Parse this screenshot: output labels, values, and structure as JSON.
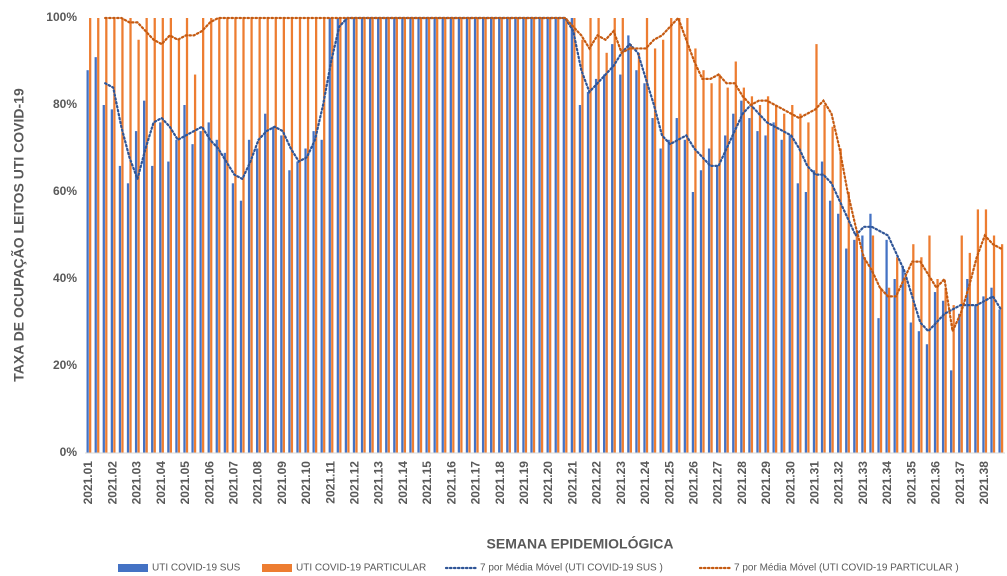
{
  "chart_data": {
    "type": "bar",
    "ylabel": "TAXA DE OCUPAÇÃO LEITOS UTI COVID-19",
    "xlabel": "SEMANA EPIDEMIOLÓGICA",
    "categories": [
      "2021.01",
      null,
      null,
      "2021.02",
      null,
      null,
      "2021.03",
      null,
      null,
      "2021.04",
      null,
      null,
      "2021.05",
      null,
      null,
      "2021.06",
      null,
      null,
      "2021.07",
      null,
      null,
      "2021.08",
      null,
      null,
      "2021.09",
      null,
      null,
      "2021.10",
      null,
      null,
      "2021.11",
      null,
      null,
      "2021.12",
      null,
      null,
      "2021.13",
      null,
      null,
      "2021.14",
      null,
      null,
      "2021.15",
      null,
      null,
      "2021.16",
      null,
      null,
      "2021.17",
      null,
      null,
      "2021.18",
      null,
      null,
      "2021.19",
      null,
      null,
      "2021.20",
      null,
      null,
      "2021.21",
      null,
      null,
      "2021.22",
      null,
      null,
      "2021.23",
      null,
      null,
      "2021.24",
      null,
      null,
      "2021.25",
      null,
      null,
      "2021.26",
      null,
      null,
      "2021.27",
      null,
      null,
      "2021.28",
      null,
      null,
      "2021.29",
      null,
      null,
      "2021.30",
      null,
      null,
      "2021.31",
      null,
      null,
      "2021.32",
      null,
      null,
      "2021.33",
      null,
      null,
      "2021.34",
      null,
      null,
      "2021.35",
      null,
      null,
      "2021.36",
      null,
      null,
      "2021.37",
      null,
      null,
      "2021.38",
      null,
      null
    ],
    "series": [
      {
        "name": "UTI COVID-19 SUS",
        "color": "#4472c4",
        "values": [
          88,
          91,
          80,
          79,
          66,
          62,
          74,
          81,
          66,
          76,
          67,
          72,
          80,
          71,
          74,
          76,
          72,
          69,
          62,
          58,
          72,
          70,
          78,
          75,
          73,
          65,
          67,
          70,
          74,
          72,
          100,
          100,
          100,
          100,
          100,
          100,
          100,
          100,
          100,
          100,
          100,
          100,
          100,
          100,
          100,
          100,
          100,
          100,
          100,
          100,
          100,
          100,
          100,
          100,
          100,
          100,
          100,
          100,
          100,
          100,
          100,
          80,
          83,
          86,
          87,
          94,
          87,
          96,
          88,
          85,
          77,
          70,
          72,
          77,
          72,
          60,
          65,
          70,
          66,
          73,
          78,
          81,
          77,
          74,
          73,
          76,
          72,
          73,
          62,
          60,
          65,
          67,
          58,
          55,
          47,
          49,
          50,
          55,
          31,
          49,
          40,
          43,
          30,
          28,
          25,
          37,
          35,
          19,
          32,
          40,
          34,
          36,
          38,
          33
        ]
      },
      {
        "name": "UTI COVID-19 PARTICULAR",
        "color": "#ed7d31",
        "values": [
          100,
          100,
          100,
          100,
          100,
          100,
          95,
          100,
          100,
          100,
          100,
          95,
          100,
          87,
          100,
          100,
          100,
          100,
          100,
          100,
          100,
          100,
          100,
          100,
          100,
          100,
          100,
          100,
          100,
          100,
          100,
          100,
          100,
          100,
          100,
          100,
          100,
          100,
          100,
          100,
          100,
          100,
          100,
          100,
          100,
          100,
          100,
          100,
          100,
          100,
          100,
          100,
          100,
          100,
          100,
          100,
          100,
          100,
          100,
          100,
          100,
          95,
          100,
          100,
          92,
          100,
          100,
          94,
          92,
          100,
          93,
          95,
          100,
          100,
          100,
          93,
          88,
          85,
          87,
          84,
          90,
          84,
          82,
          80,
          82,
          80,
          78,
          80,
          78,
          76,
          94,
          80,
          75,
          70,
          60,
          50,
          45,
          50,
          38,
          38,
          45,
          40,
          48,
          45,
          50,
          40,
          38,
          34,
          50,
          46,
          56,
          56,
          50,
          48
        ]
      },
      {
        "name": "7 por Média Móvel (UTI COVID-19 SUS )",
        "type": "line",
        "dash": "dotted",
        "color": "#2f5597",
        "values": [
          null,
          null,
          85,
          84,
          75,
          68,
          63,
          70,
          76,
          77,
          75,
          72,
          73,
          74,
          75,
          72,
          70,
          67,
          64,
          63,
          67,
          72,
          74,
          75,
          74,
          70,
          67,
          68,
          72,
          80,
          90,
          98,
          100,
          100,
          100,
          100,
          100,
          100,
          100,
          100,
          100,
          100,
          100,
          100,
          100,
          100,
          100,
          100,
          100,
          100,
          100,
          100,
          100,
          100,
          100,
          100,
          100,
          100,
          100,
          100,
          97,
          88,
          83,
          85,
          87,
          89,
          92,
          94,
          92,
          86,
          80,
          73,
          71,
          72,
          73,
          70,
          68,
          66,
          66,
          70,
          74,
          78,
          80,
          78,
          76,
          75,
          74,
          73,
          70,
          66,
          64,
          64,
          62,
          58,
          54,
          50,
          52,
          52,
          51,
          50,
          46,
          42,
          36,
          30,
          28,
          30,
          32,
          33,
          34,
          34,
          34,
          35,
          36,
          33
        ]
      },
      {
        "name": "7 por Média Móvel (UTI COVID-19 PARTICULAR )",
        "type": "line",
        "dash": "dotted",
        "color": "#c55a11",
        "values": [
          null,
          null,
          100,
          100,
          100,
          99,
          99,
          97,
          95,
          94,
          96,
          95,
          96,
          96,
          97,
          99,
          100,
          100,
          100,
          100,
          100,
          100,
          100,
          100,
          100,
          100,
          100,
          100,
          100,
          100,
          100,
          100,
          100,
          100,
          100,
          100,
          100,
          100,
          100,
          100,
          100,
          100,
          100,
          100,
          100,
          100,
          100,
          100,
          100,
          100,
          100,
          100,
          100,
          100,
          100,
          100,
          100,
          100,
          100,
          100,
          98,
          96,
          93,
          96,
          95,
          97,
          92,
          93,
          93,
          93,
          95,
          96,
          98,
          100,
          95,
          90,
          86,
          86,
          87,
          85,
          85,
          82,
          80,
          81,
          81,
          80,
          79,
          78,
          77,
          78,
          79,
          81,
          78,
          70,
          60,
          52,
          45,
          42,
          38,
          36,
          36,
          40,
          44,
          44,
          41,
          38,
          40,
          28,
          32,
          38,
          45,
          50,
          48,
          47
        ]
      }
    ],
    "ylim": [
      0,
      100
    ],
    "yticks": [
      {
        "value": 0,
        "label": "0%"
      },
      {
        "value": 20,
        "label": "20%"
      },
      {
        "value": 40,
        "label": "40%"
      },
      {
        "value": 60,
        "label": "60%"
      },
      {
        "value": 80,
        "label": "80%"
      },
      {
        "value": 100,
        "label": "100%"
      }
    ],
    "grid": false,
    "legend": "bottom"
  }
}
